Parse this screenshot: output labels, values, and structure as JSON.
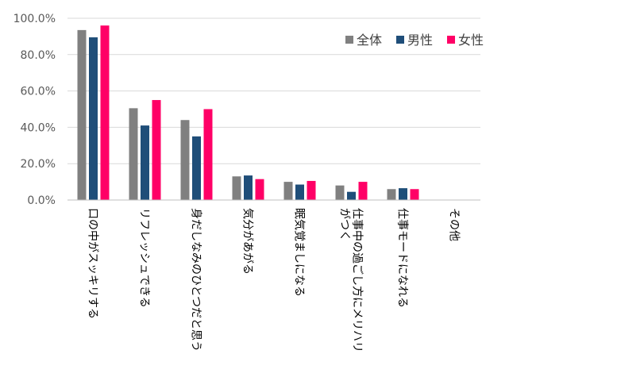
{
  "chart_data": {
    "type": "bar",
    "categories": [
      "口の中がスッキリする",
      "リフレッシュできる",
      "身だしなみのひとつだと思う",
      "気分があがる",
      "眠気覚ましになる",
      "仕事中の過ごし方にメリハリがつく",
      "仕事モードになれる",
      "その他"
    ],
    "category_lines": [
      [
        "口の中がスッキリする"
      ],
      [
        "リフレッシュできる"
      ],
      [
        "身だしなみのひとつだと思う"
      ],
      [
        "気分があがる"
      ],
      [
        "眠気覚ましになる"
      ],
      [
        "仕事中の過ごし方にメリハリ",
        "がつく"
      ],
      [
        "仕事モードになれる"
      ],
      [
        "その他"
      ]
    ],
    "series": [
      {
        "name": "全体",
        "color": "#808080",
        "values": [
          93.5,
          50.5,
          44.0,
          13.0,
          10.0,
          8.0,
          6.0,
          0
        ]
      },
      {
        "name": "男性",
        "color": "#1f4e79",
        "values": [
          89.5,
          41.0,
          35.0,
          13.5,
          8.5,
          4.5,
          6.5,
          0
        ]
      },
      {
        "name": "女性",
        "color": "#ff0066",
        "values": [
          96.0,
          55.0,
          50.0,
          11.5,
          10.5,
          10.0,
          6.0,
          0
        ]
      }
    ],
    "y_ticks": [
      "0.0%",
      "20.0%",
      "40.0%",
      "60.0%",
      "80.0%",
      "100.0%"
    ],
    "ylim": [
      0,
      100
    ],
    "grid": true,
    "legend_position": "top-right"
  }
}
